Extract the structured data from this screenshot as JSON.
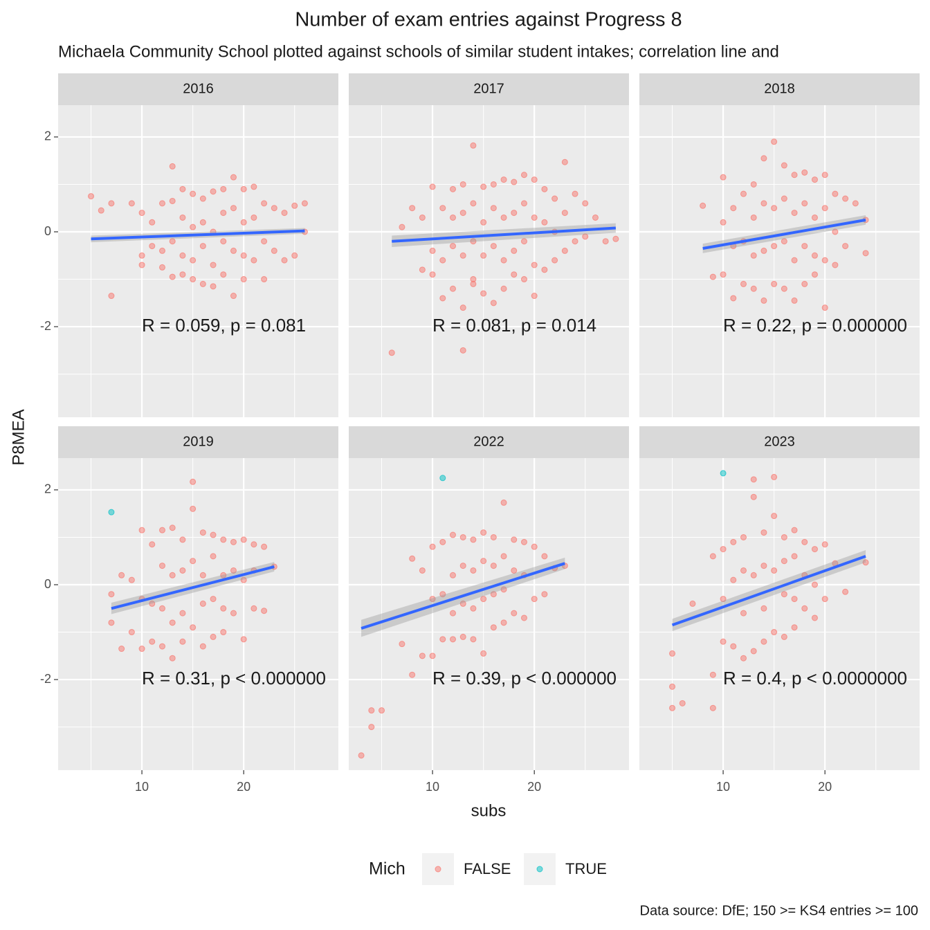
{
  "chart_data": {
    "type": "scatter",
    "title": "Number of exam entries against Progress 8",
    "subtitle": "Michaela Community School plotted against schools of similar student intakes; correlation line and",
    "x_label": "subs",
    "y_label": "P8MEA",
    "caption": "Data source: DfE; 150 >= KS4 entries >= 100",
    "legend_title": "Mich",
    "series": [
      {
        "name": "FALSE",
        "color": "#F8766D"
      },
      {
        "name": "TRUE",
        "color": "#00BFC4"
      }
    ],
    "trend_color": "#3366FF",
    "xlim": [
      1.77,
      29.3
    ],
    "ylim": [
      -3.91,
      2.67
    ],
    "xticks": [
      10,
      20
    ],
    "yticks": [
      -2,
      0,
      2
    ],
    "xminor": [
      5,
      15,
      25
    ],
    "yminor": [
      -3,
      -1,
      1
    ],
    "panels": [
      {
        "label": "2016",
        "annotation": "R = 0.059, p = 0.081",
        "points": [
          {
            "x": [
              5,
              6,
              7,
              7,
              9,
              10,
              10,
              10,
              11,
              11,
              12,
              12,
              12,
              13,
              13,
              13,
              13,
              14,
              14,
              14,
              14,
              15,
              15,
              15,
              15,
              16,
              16,
              16,
              16,
              17,
              17,
              17,
              17,
              18,
              18,
              18,
              18,
              19,
              19,
              19,
              19,
              20,
              20,
              20,
              20,
              21,
              21,
              21,
              22,
              22,
              22,
              23,
              23,
              24,
              24,
              25,
              25,
              26,
              26
            ],
            "y": [
              0.75,
              0.45,
              0.6,
              -1.35,
              0.6,
              0.4,
              -0.5,
              -0.7,
              0.2,
              -0.3,
              0.6,
              -0.4,
              -0.75,
              1.38,
              0.65,
              -0.2,
              -0.95,
              0.9,
              0.3,
              -0.5,
              -0.9,
              0.8,
              0.1,
              -0.6,
              -1.0,
              0.7,
              0.2,
              -0.3,
              -1.1,
              0.85,
              0.0,
              -0.7,
              -1.15,
              0.9,
              0.4,
              -0.2,
              -0.9,
              1.15,
              0.5,
              -0.4,
              -1.35,
              0.9,
              0.2,
              -0.5,
              -1.0,
              0.95,
              0.3,
              -0.6,
              0.6,
              -0.2,
              -1.0,
              0.5,
              -0.4,
              0.4,
              -0.6,
              0.55,
              -0.5,
              0.6,
              0.0
            ]
          },
          {
            "x": [],
            "y": []
          }
        ],
        "trend": {
          "x": [
            5,
            26
          ],
          "y": [
            -0.15,
            0.02
          ],
          "lower": [
            -0.22,
            -0.04
          ],
          "upper": [
            -0.08,
            0.08
          ]
        }
      },
      {
        "label": "2017",
        "annotation": "R = 0.081, p = 0.014",
        "points": [
          {
            "x": [
              6,
              7,
              8,
              9,
              9,
              10,
              10,
              10,
              11,
              11,
              11,
              12,
              12,
              12,
              12,
              13,
              13,
              13,
              13,
              14,
              14,
              14,
              14,
              15,
              15,
              15,
              15,
              16,
              16,
              16,
              16,
              17,
              17,
              17,
              17,
              18,
              18,
              18,
              18,
              19,
              19,
              19,
              19,
              20,
              20,
              20,
              20,
              21,
              21,
              21,
              22,
              22,
              22,
              23,
              23,
              23,
              24,
              24,
              25,
              25,
              26,
              27,
              28,
              13,
              14
            ],
            "y": [
              -2.55,
              0.1,
              0.5,
              0.3,
              -0.8,
              0.95,
              -0.4,
              -0.9,
              0.5,
              -0.6,
              -1.4,
              0.9,
              0.3,
              -0.3,
              -1.2,
              1.0,
              0.4,
              -0.5,
              -1.6,
              1.82,
              0.6,
              -0.2,
              -1.1,
              0.95,
              0.2,
              -0.5,
              -1.3,
              1.0,
              0.5,
              -0.3,
              -1.5,
              1.1,
              0.3,
              -0.6,
              -1.2,
              1.05,
              0.4,
              -0.4,
              -0.9,
              1.2,
              0.6,
              -0.2,
              -1.0,
              1.1,
              0.3,
              -0.7,
              -1.35,
              0.9,
              0.2,
              -0.8,
              0.7,
              0.0,
              -0.6,
              1.47,
              0.4,
              -0.4,
              0.8,
              -0.2,
              0.6,
              -0.1,
              0.3,
              -0.2,
              -0.15,
              -2.5,
              -1.0
            ]
          },
          {
            "x": [],
            "y": []
          }
        ],
        "trend": {
          "x": [
            6,
            28
          ],
          "y": [
            -0.2,
            0.08
          ],
          "lower": [
            -0.32,
            -0.02
          ],
          "upper": [
            -0.08,
            0.18
          ]
        }
      },
      {
        "label": "2018",
        "annotation": "R = 0.22, p = 0.000000",
        "points": [
          {
            "x": [
              8,
              9,
              10,
              10,
              10,
              11,
              11,
              11,
              12,
              12,
              12,
              13,
              13,
              13,
              13,
              14,
              14,
              14,
              14,
              15,
              15,
              15,
              15,
              16,
              16,
              16,
              16,
              17,
              17,
              17,
              17,
              18,
              18,
              18,
              18,
              19,
              19,
              19,
              19,
              20,
              20,
              20,
              20,
              21,
              21,
              21,
              22,
              22,
              23,
              24,
              24
            ],
            "y": [
              0.55,
              -0.95,
              1.15,
              0.2,
              -0.9,
              0.5,
              -0.3,
              -1.4,
              0.8,
              -0.2,
              -1.1,
              1.0,
              0.3,
              -0.5,
              -1.2,
              1.55,
              0.6,
              -0.4,
              -1.45,
              1.9,
              0.5,
              -0.3,
              -1.1,
              1.4,
              0.7,
              -0.2,
              -1.2,
              1.2,
              0.4,
              -0.6,
              -1.45,
              1.25,
              0.6,
              -0.3,
              -1.1,
              1.1,
              0.3,
              -0.5,
              -0.9,
              1.2,
              0.5,
              -0.6,
              -1.6,
              0.8,
              0.0,
              -0.7,
              0.7,
              -0.3,
              0.6,
              0.25,
              -0.45
            ]
          },
          {
            "x": [],
            "y": []
          }
        ],
        "trend": {
          "x": [
            8,
            24
          ],
          "y": [
            -0.35,
            0.25
          ],
          "lower": [
            -0.45,
            0.15
          ],
          "upper": [
            -0.25,
            0.35
          ]
        }
      },
      {
        "label": "2019",
        "annotation": "R = 0.31, p < 0.000000",
        "points": [
          {
            "x": [
              7,
              7,
              8,
              8,
              9,
              9,
              10,
              10,
              10,
              11,
              11,
              11,
              12,
              12,
              12,
              12,
              13,
              13,
              13,
              13,
              14,
              14,
              14,
              14,
              15,
              15,
              15,
              15,
              16,
              16,
              16,
              16,
              17,
              17,
              17,
              17,
              18,
              18,
              18,
              18,
              19,
              19,
              19,
              20,
              20,
              20,
              21,
              21,
              21,
              22,
              22,
              23
            ],
            "y": [
              -0.2,
              -0.8,
              0.2,
              -1.35,
              0.1,
              -1.0,
              1.15,
              -0.3,
              -1.35,
              0.85,
              -0.4,
              -1.2,
              1.15,
              0.4,
              -0.5,
              -1.3,
              1.2,
              0.2,
              -0.8,
              -1.55,
              0.95,
              0.3,
              -0.6,
              -1.2,
              2.17,
              1.6,
              0.5,
              -0.9,
              1.1,
              0.2,
              -0.4,
              -1.3,
              1.05,
              0.6,
              -0.3,
              -1.1,
              0.95,
              0.2,
              -0.5,
              -1.0,
              0.9,
              0.3,
              -0.6,
              0.95,
              0.1,
              -1.15,
              0.85,
              0.3,
              -0.5,
              0.8,
              -0.55,
              0.38
            ]
          },
          {
            "x": [
              7
            ],
            "y": [
              1.53
            ]
          }
        ],
        "trend": {
          "x": [
            7,
            23
          ],
          "y": [
            -0.5,
            0.38
          ],
          "lower": [
            -0.62,
            0.28
          ],
          "upper": [
            -0.38,
            0.48
          ]
        }
      },
      {
        "label": "2022",
        "annotation": "R = 0.39, p < 0.000000",
        "points": [
          {
            "x": [
              3,
              4,
              4,
              5,
              7,
              8,
              8,
              9,
              9,
              10,
              10,
              10,
              11,
              11,
              11,
              12,
              12,
              12,
              12,
              13,
              13,
              13,
              13,
              14,
              14,
              14,
              14,
              15,
              15,
              15,
              15,
              16,
              16,
              16,
              16,
              17,
              17,
              17,
              17,
              18,
              18,
              18,
              19,
              19,
              19,
              20,
              20,
              21,
              21,
              22,
              23
            ],
            "y": [
              -3.6,
              -3.0,
              -2.65,
              -2.65,
              -1.25,
              0.55,
              -1.9,
              0.3,
              -1.5,
              0.8,
              -0.3,
              -1.5,
              0.9,
              -0.2,
              -1.15,
              1.05,
              0.2,
              -0.6,
              -1.15,
              1.0,
              0.4,
              -0.4,
              -1.1,
              0.95,
              0.3,
              -0.5,
              -1.15,
              1.1,
              0.5,
              -0.3,
              -1.45,
              1.0,
              0.4,
              -0.2,
              -0.9,
              1.73,
              0.6,
              -0.1,
              -0.8,
              0.95,
              0.3,
              -0.6,
              0.9,
              0.2,
              -0.7,
              0.8,
              -0.3,
              0.6,
              -0.2,
              0.35,
              0.4
            ]
          },
          {
            "x": [
              11
            ],
            "y": [
              2.25
            ]
          }
        ],
        "trend": {
          "x": [
            3,
            23
          ],
          "y": [
            -0.92,
            0.45
          ],
          "lower": [
            -1.1,
            0.33
          ],
          "upper": [
            -0.74,
            0.57
          ]
        }
      },
      {
        "label": "2023",
        "annotation": "R = 0.4, p < 0.0000000",
        "points": [
          {
            "x": [
              5,
              5,
              5,
              6,
              7,
              9,
              9,
              9,
              10,
              10,
              10,
              11,
              11,
              11,
              12,
              12,
              12,
              12,
              13,
              13,
              13,
              13,
              14,
              14,
              14,
              14,
              15,
              15,
              15,
              15,
              16,
              16,
              16,
              16,
              17,
              17,
              17,
              17,
              18,
              18,
              18,
              19,
              19,
              19,
              20,
              20,
              21,
              22,
              24
            ],
            "y": [
              -1.45,
              -2.15,
              -2.6,
              -2.5,
              -0.4,
              0.6,
              -1.9,
              -2.6,
              0.75,
              -0.3,
              -1.2,
              0.9,
              0.1,
              -1.3,
              1.0,
              0.3,
              -0.6,
              -1.55,
              2.22,
              1.85,
              0.2,
              -1.4,
              1.1,
              0.4,
              -0.5,
              -1.2,
              2.27,
              1.45,
              0.3,
              -1.0,
              1.0,
              0.5,
              -0.2,
              -1.1,
              1.15,
              0.6,
              -0.3,
              -0.9,
              0.9,
              0.2,
              -0.5,
              0.75,
              0.0,
              -0.7,
              0.85,
              -0.3,
              0.45,
              -0.15,
              0.47
            ]
          },
          {
            "x": [
              10
            ],
            "y": [
              2.35
            ]
          }
        ],
        "trend": {
          "x": [
            5,
            24
          ],
          "y": [
            -0.85,
            0.6
          ],
          "lower": [
            -0.98,
            0.47
          ],
          "upper": [
            -0.72,
            0.73
          ]
        }
      }
    ]
  }
}
